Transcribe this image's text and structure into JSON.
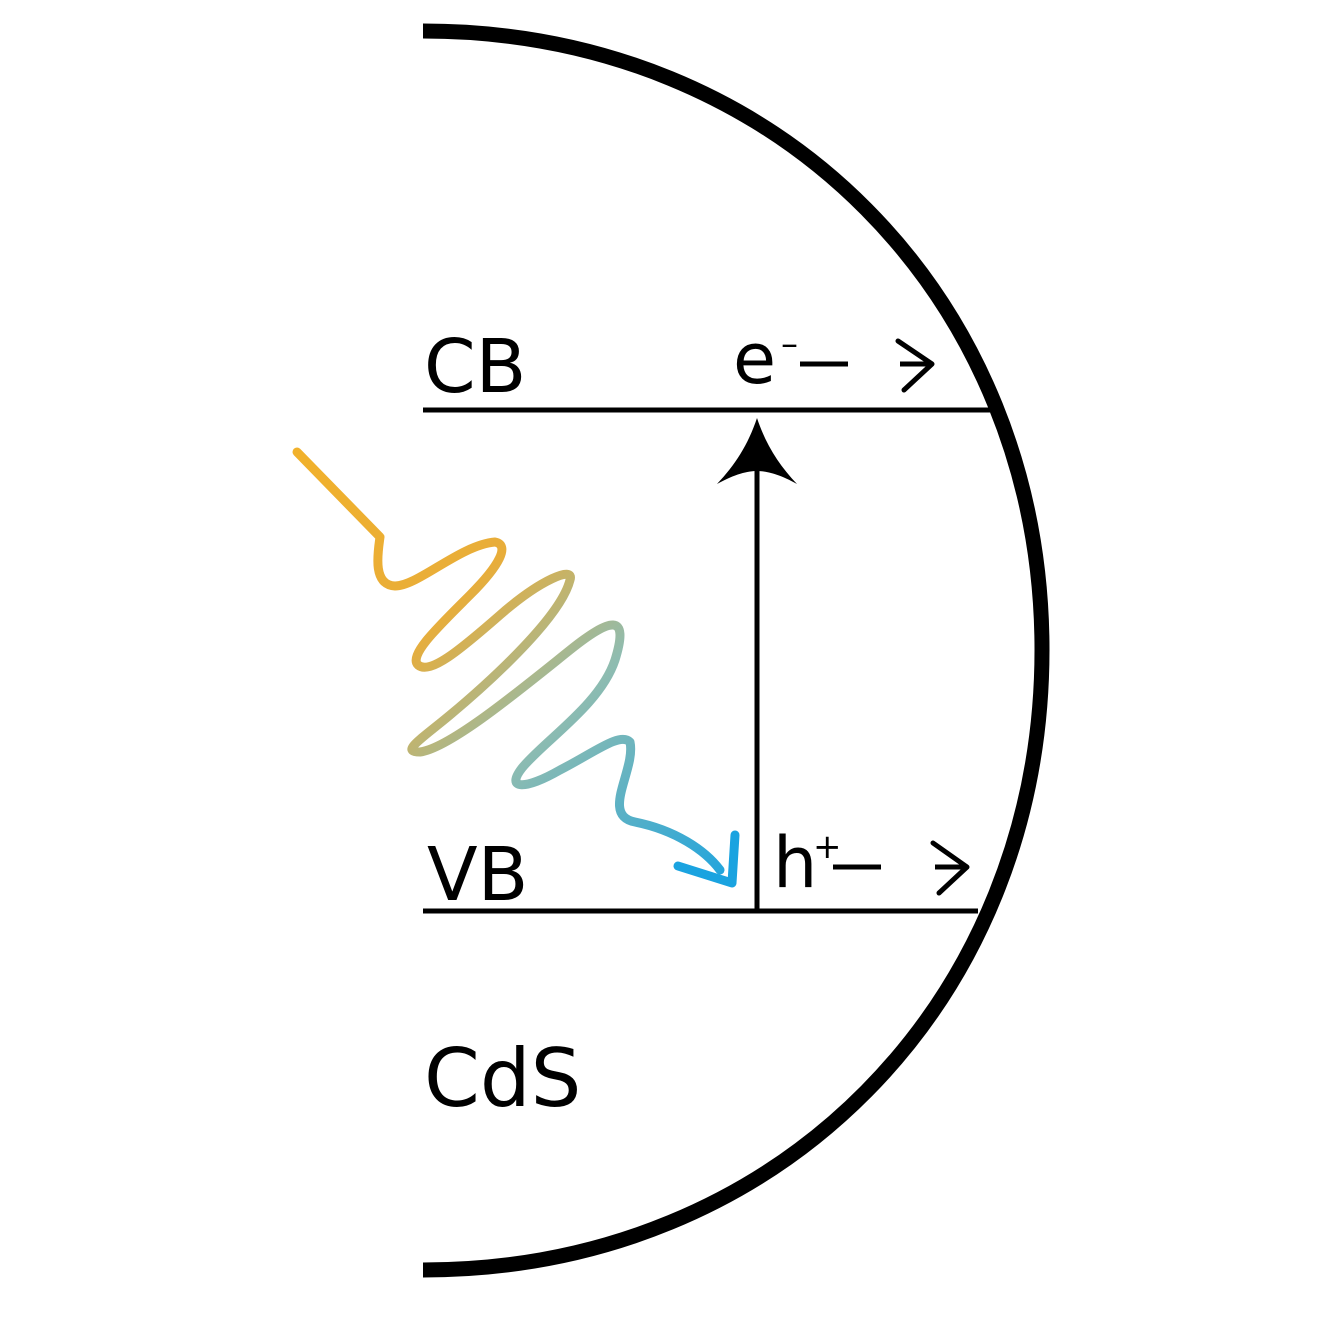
{
  "diagram": {
    "conduction_band": {
      "label": "CB"
    },
    "valence_band": {
      "label": "VB"
    },
    "material": {
      "label": "CdS"
    },
    "electron": {
      "symbol": "e",
      "charge": "–"
    },
    "hole": {
      "symbol": "h",
      "charge": "+"
    },
    "photon": {
      "color_start": "#f1b12b",
      "color_end": "#1aa3e0"
    },
    "colors": {
      "line": "#000000",
      "background": "#ffffff"
    }
  }
}
